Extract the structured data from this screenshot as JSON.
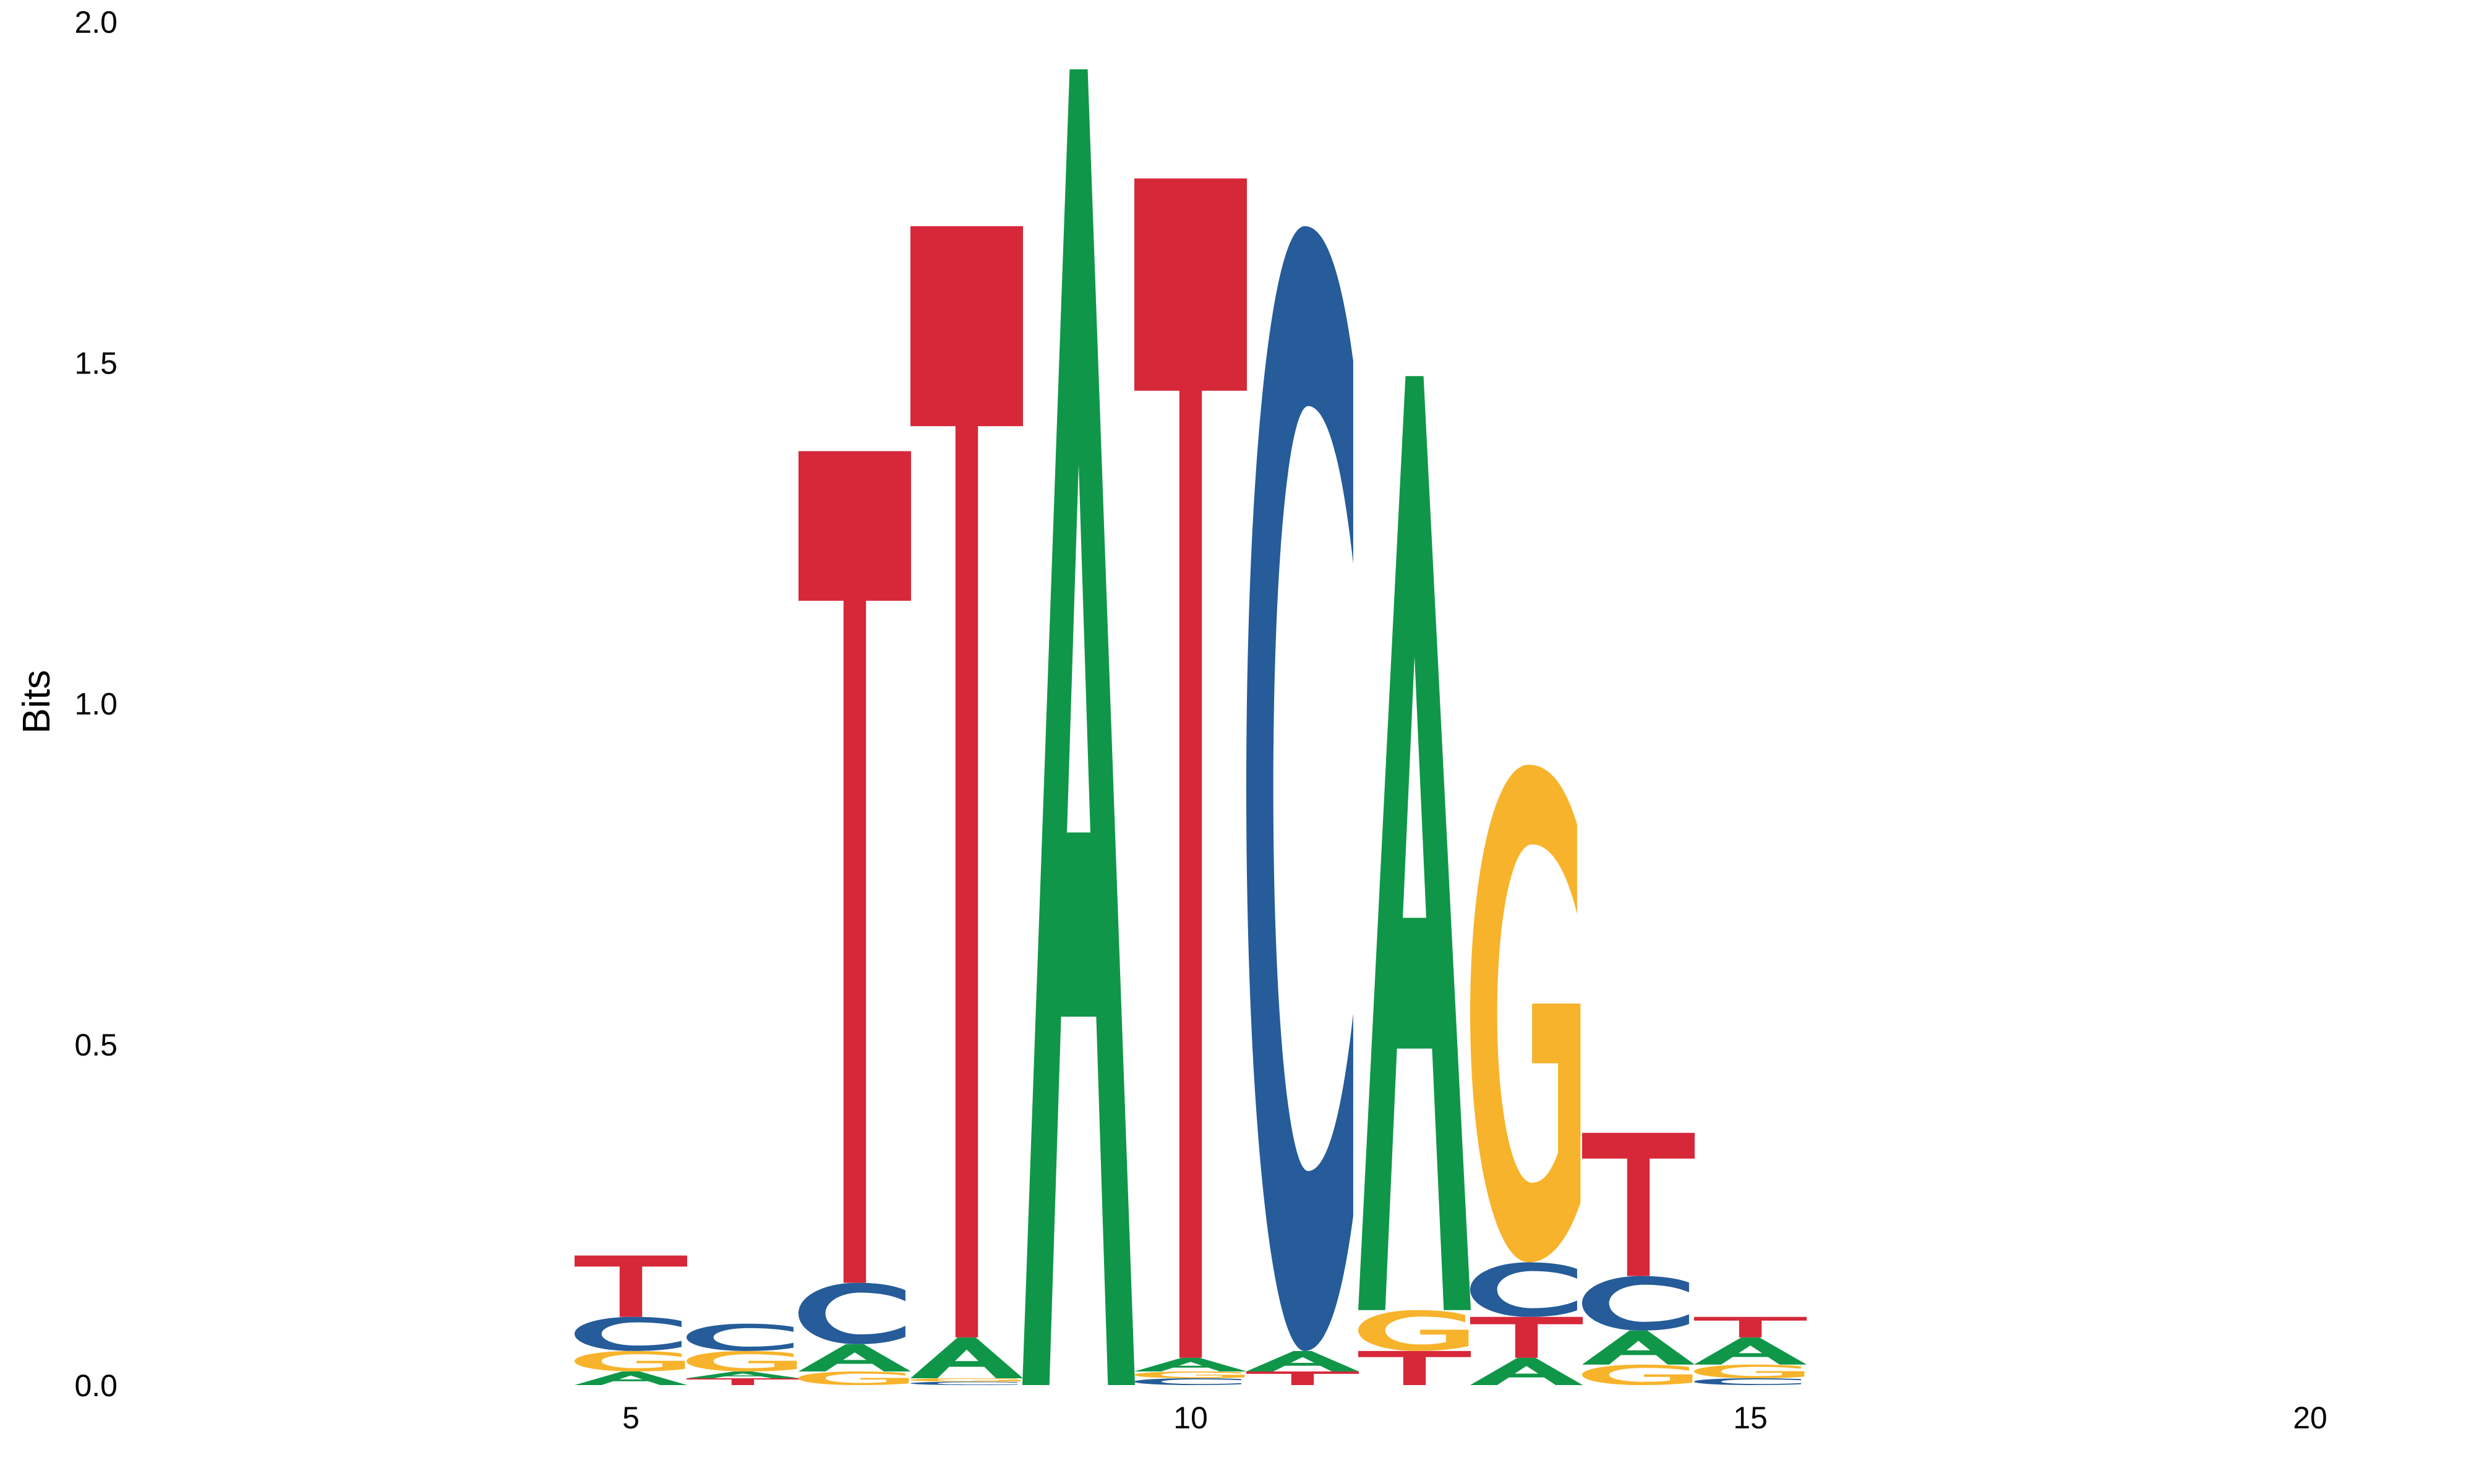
{
  "chart_data": {
    "type": "sequence-logo",
    "ylabel": "Bits",
    "xlabel": "",
    "ylim": [
      0,
      2.0
    ],
    "xlim": [
      4,
      21
    ],
    "yticks": [
      "0.0",
      "0.5",
      "1.0",
      "1.5",
      "2.0"
    ],
    "xticks": [
      5,
      10,
      15,
      20
    ],
    "grid": false,
    "colors": {
      "A": "#109648",
      "C": "#255C99",
      "G": "#F7B32B",
      "T": "#D62839"
    },
    "positions": [
      {
        "pos": 5,
        "stack": [
          [
            "A",
            0.02
          ],
          [
            "G",
            0.03
          ],
          [
            "C",
            0.05
          ],
          [
            "T",
            0.09
          ]
        ]
      },
      {
        "pos": 6,
        "stack": [
          [
            "T",
            0.01
          ],
          [
            "A",
            0.01
          ],
          [
            "G",
            0.03
          ],
          [
            "C",
            0.04
          ]
        ]
      },
      {
        "pos": 7,
        "stack": [
          [
            "G",
            0.02
          ],
          [
            "A",
            0.04
          ],
          [
            "C",
            0.09
          ],
          [
            "T",
            1.22
          ]
        ]
      },
      {
        "pos": 8,
        "stack": [
          [
            "C",
            0.005
          ],
          [
            "G",
            0.005
          ],
          [
            "A",
            0.06
          ],
          [
            "T",
            1.63
          ]
        ]
      },
      {
        "pos": 9,
        "stack": [
          [
            "A",
            1.93
          ]
        ]
      },
      {
        "pos": 10,
        "stack": [
          [
            "C",
            0.01
          ],
          [
            "G",
            0.01
          ],
          [
            "A",
            0.02
          ],
          [
            "T",
            1.73
          ]
        ]
      },
      {
        "pos": 11,
        "stack": [
          [
            "T",
            0.02
          ],
          [
            "A",
            0.03
          ],
          [
            "C",
            1.65
          ]
        ]
      },
      {
        "pos": 12,
        "stack": [
          [
            "T",
            0.05
          ],
          [
            "G",
            0.06
          ],
          [
            "A",
            1.37
          ]
        ]
      },
      {
        "pos": 13,
        "stack": [
          [
            "A",
            0.04
          ],
          [
            "T",
            0.06
          ],
          [
            "C",
            0.08
          ],
          [
            "G",
            0.73
          ]
        ]
      },
      {
        "pos": 14,
        "stack": [
          [
            "G",
            0.03
          ],
          [
            "A",
            0.05
          ],
          [
            "C",
            0.08
          ],
          [
            "T",
            0.21
          ]
        ]
      },
      {
        "pos": 15,
        "stack": [
          [
            "C",
            0.01
          ],
          [
            "G",
            0.02
          ],
          [
            "A",
            0.04
          ],
          [
            "T",
            0.03
          ]
        ]
      }
    ]
  }
}
